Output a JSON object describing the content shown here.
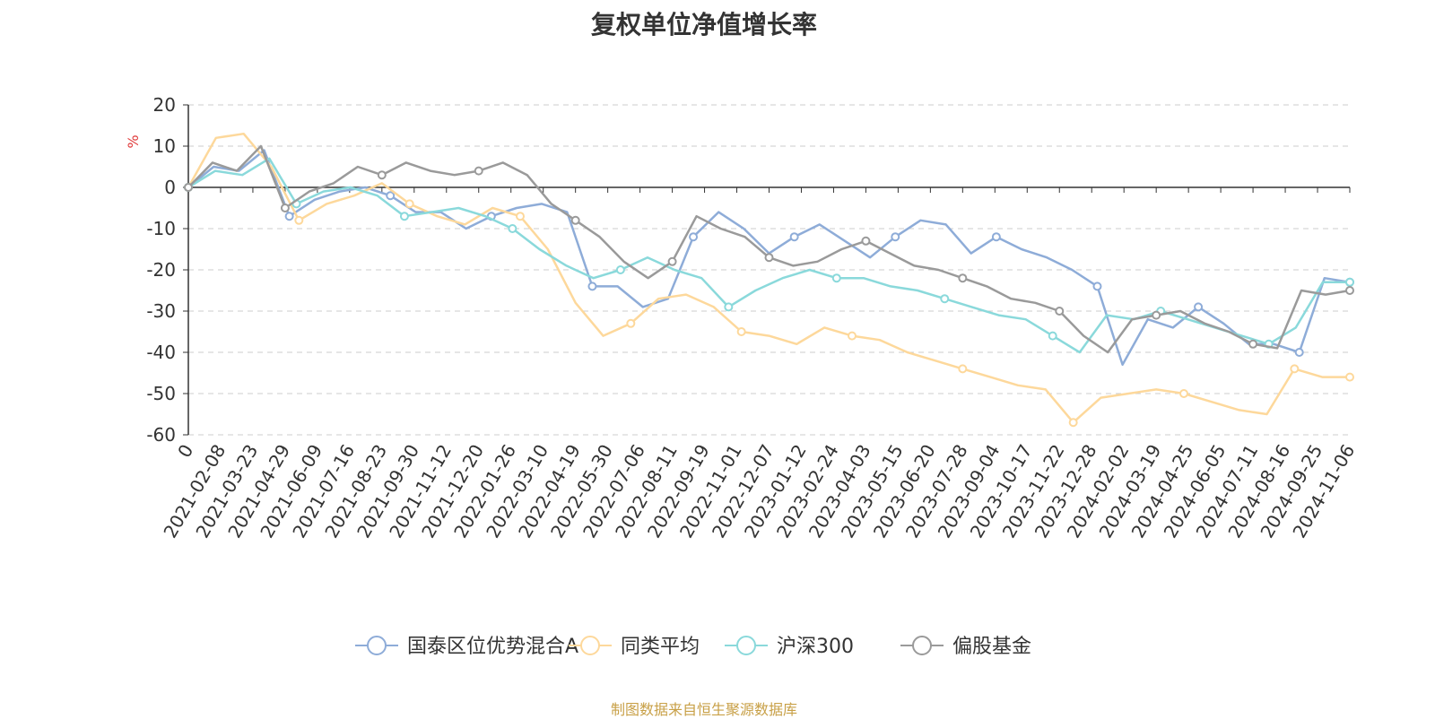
{
  "chart_data": {
    "type": "line",
    "title": "复权单位净值增长率",
    "ylabel": "%",
    "ylim": [
      -60,
      20
    ],
    "yticks": [
      20,
      10,
      0,
      -10,
      -20,
      -30,
      -40,
      -50,
      -60
    ],
    "x_tick_labels": [
      "0",
      "2021-02-08",
      "2021-03-23",
      "2021-04-29",
      "2021-06-09",
      "2021-07-16",
      "2021-08-23",
      "2021-09-30",
      "2021-11-12",
      "2021-12-20",
      "2022-01-26",
      "2022-03-10",
      "2022-04-19",
      "2022-05-30",
      "2022-07-06",
      "2022-08-11",
      "2022-09-19",
      "2022-11-01",
      "2022-12-07",
      "2023-01-12",
      "2023-02-24",
      "2023-04-03",
      "2023-05-15",
      "2023-06-20",
      "2023-07-28",
      "2023-09-04",
      "2023-10-17",
      "2023-11-22",
      "2023-12-28",
      "2024-02-02",
      "2024-03-19",
      "2024-04-25",
      "2024-06-05",
      "2024-07-11",
      "2024-08-16",
      "2024-09-25",
      "2024-11-06"
    ],
    "grid": true,
    "legend_position": "bottom",
    "source_text": "制图数据来自恒生聚源数据库",
    "series": [
      {
        "name": "国泰区位优势混合A",
        "color": "#8eacd8",
        "values": [
          0,
          5,
          4,
          9,
          -7,
          -3,
          -1,
          0,
          -2,
          -6,
          -6,
          -10,
          -7,
          -5,
          -4,
          -6,
          -24,
          -24,
          -29,
          -27,
          -12,
          -6,
          -10,
          -16,
          -12,
          -9,
          -13,
          -17,
          -12,
          -8,
          -9,
          -16,
          -12,
          -15,
          -17,
          -20,
          -24,
          -43,
          -32,
          -34,
          -29,
          -33,
          -38,
          -38,
          -40,
          -22,
          -23
        ]
      },
      {
        "name": "同类平均",
        "color": "#fdd89b",
        "values": [
          0,
          12,
          13,
          5,
          -8,
          -4,
          -2,
          1,
          -4,
          -7,
          -9,
          -5,
          -7,
          -15,
          -28,
          -36,
          -33,
          -27,
          -26,
          -29,
          -35,
          -36,
          -38,
          -34,
          -36,
          -37,
          -40,
          -42,
          -44,
          -46,
          -48,
          -49,
          -57,
          -51,
          -50,
          -49,
          -50,
          -52,
          -54,
          -55,
          -44,
          -46,
          -46
        ]
      },
      {
        "name": "沪深300",
        "color": "#8ad9db",
        "values": [
          0,
          4,
          3,
          7,
          -4,
          -1,
          0,
          -2,
          -7,
          -6,
          -5,
          -7,
          -10,
          -15,
          -19,
          -22,
          -20,
          -17,
          -20,
          -22,
          -29,
          -25,
          -22,
          -20,
          -22,
          -22,
          -24,
          -25,
          -27,
          -29,
          -31,
          -32,
          -36,
          -40,
          -31,
          -32,
          -30,
          -32,
          -34,
          -36,
          -38,
          -34,
          -23,
          -23
        ]
      },
      {
        "name": "偏股基金",
        "color": "#9a9a9a",
        "values": [
          0,
          6,
          4,
          10,
          -5,
          -1,
          1,
          5,
          3,
          6,
          4,
          3,
          4,
          6,
          3,
          -4,
          -8,
          -12,
          -18,
          -22,
          -18,
          -7,
          -10,
          -12,
          -17,
          -19,
          -18,
          -15,
          -13,
          -16,
          -19,
          -20,
          -22,
          -24,
          -27,
          -28,
          -30,
          -36,
          -40,
          -32,
          -31,
          -30,
          -33,
          -35,
          -38,
          -39,
          -25,
          -26,
          -25
        ]
      }
    ]
  }
}
